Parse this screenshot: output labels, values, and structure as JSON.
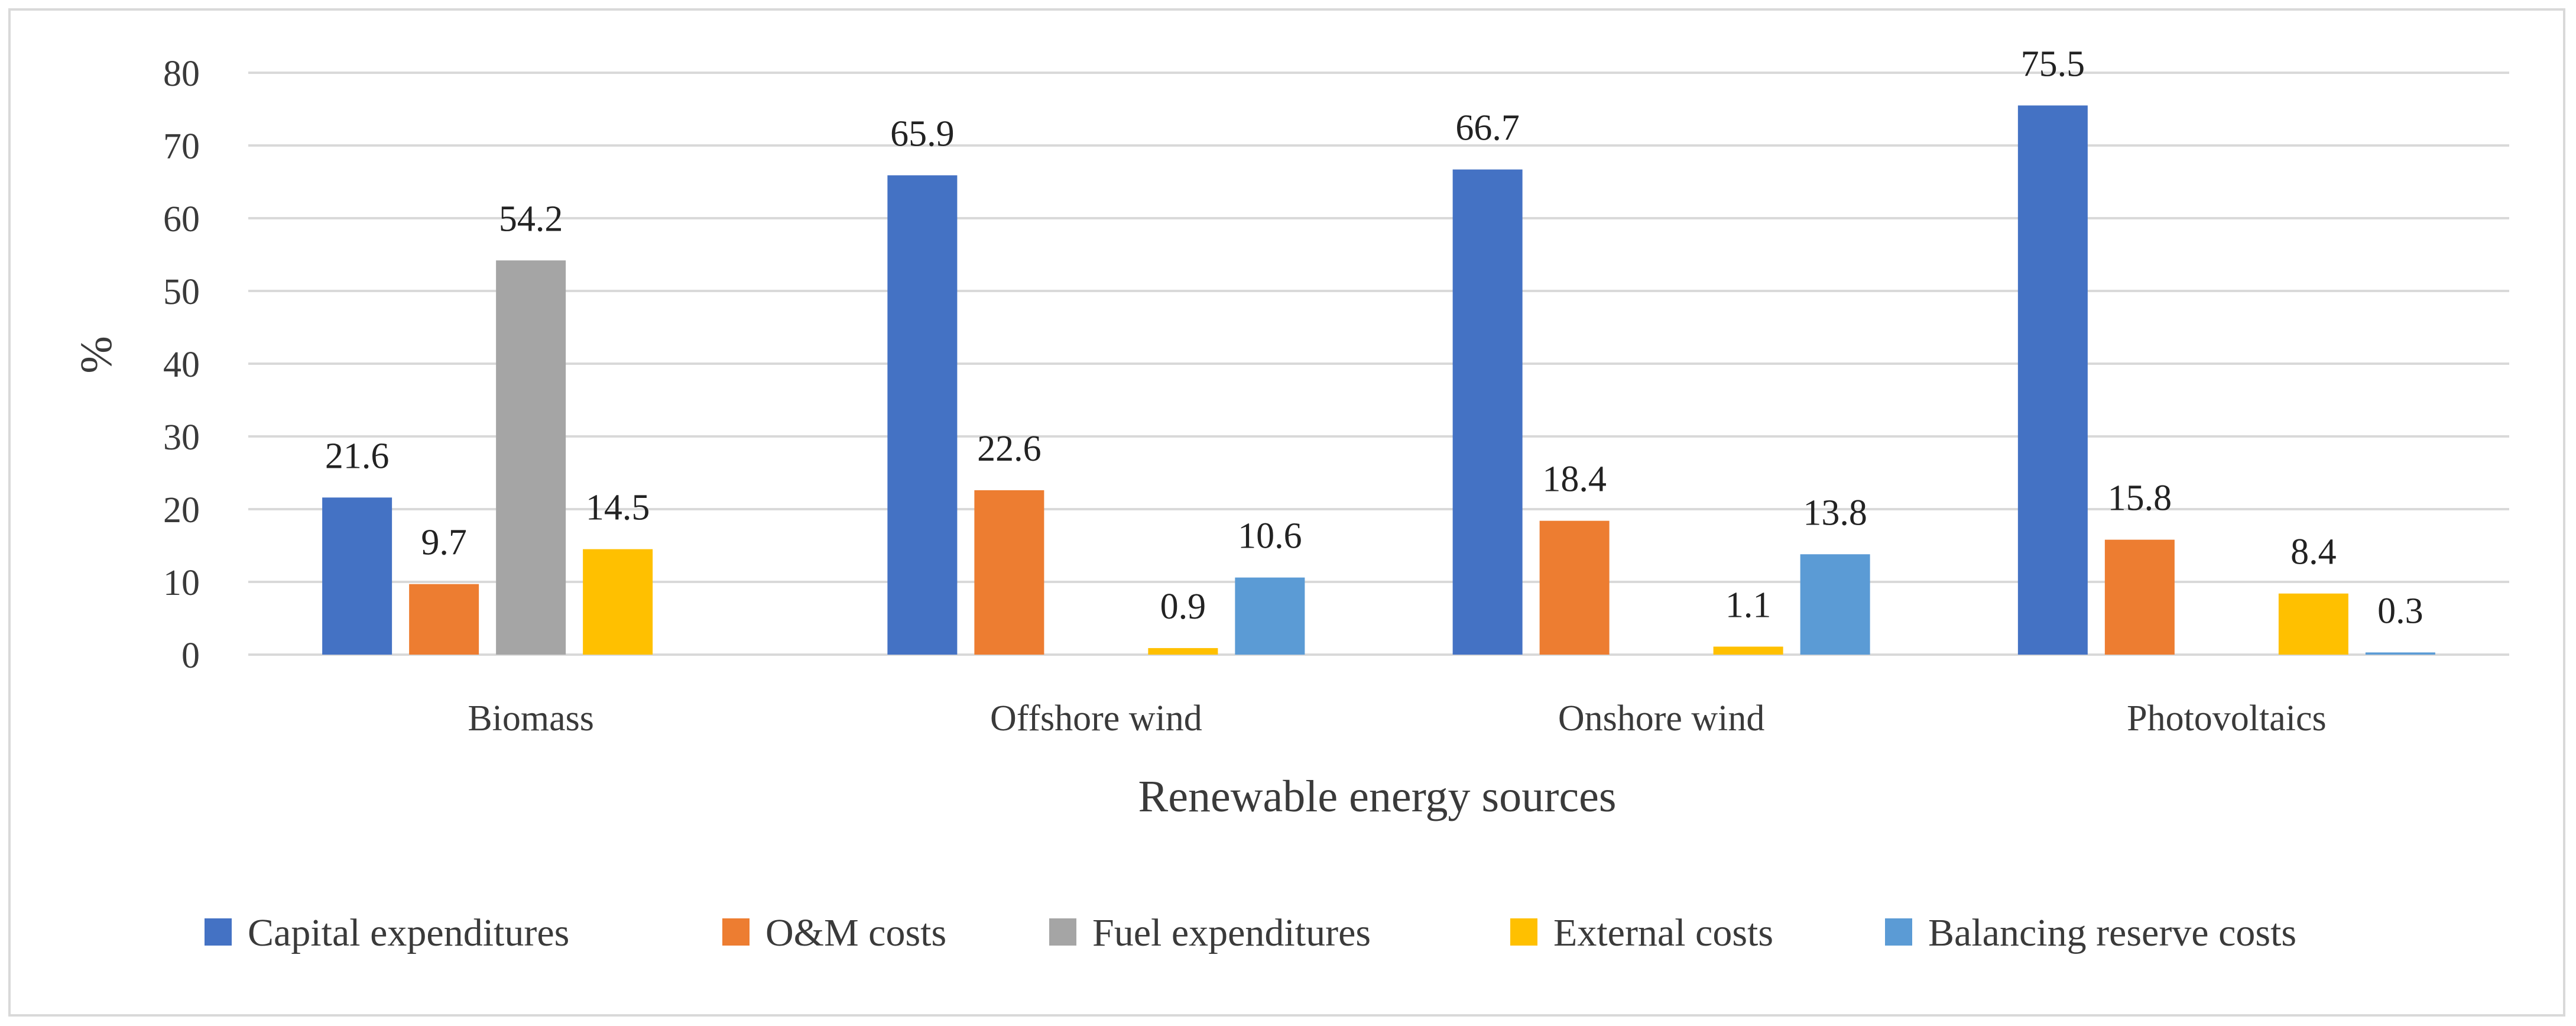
{
  "chart_data": {
    "type": "bar",
    "title": "",
    "xlabel": "Renewable energy sources",
    "ylabel": "%",
    "ylim": [
      0,
      80
    ],
    "yticks": [
      0,
      10,
      20,
      30,
      40,
      50,
      60,
      70,
      80
    ],
    "grid": true,
    "legend_position": "bottom",
    "categories": [
      "Biomass",
      "Offshore wind",
      "Onshore wind",
      "Photovoltaics"
    ],
    "series": [
      {
        "name": "Capital expenditures",
        "color": "#4472C4",
        "values": [
          21.6,
          65.9,
          66.7,
          75.5
        ]
      },
      {
        "name": "O&M costs",
        "color": "#ED7D31",
        "values": [
          9.7,
          22.6,
          18.4,
          15.8
        ]
      },
      {
        "name": "Fuel expenditures",
        "color": "#A5A5A5",
        "values": [
          54.2,
          null,
          null,
          null
        ]
      },
      {
        "name": "External costs",
        "color": "#FFC000",
        "values": [
          14.5,
          0.9,
          1.1,
          8.4
        ]
      },
      {
        "name": "Balancing reserve costs",
        "color": "#5B9BD5",
        "values": [
          null,
          10.6,
          13.8,
          0.3
        ]
      }
    ]
  }
}
